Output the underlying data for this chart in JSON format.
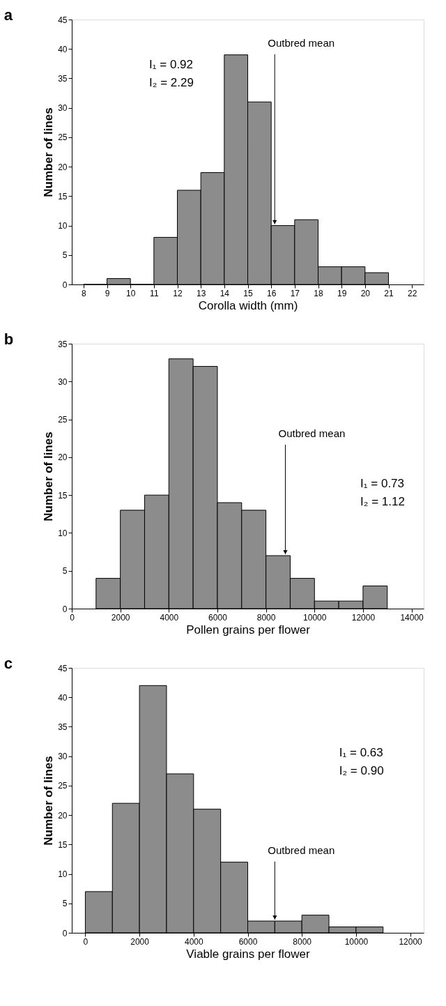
{
  "chart_data": [
    {
      "type": "histogram",
      "title": "a",
      "xlabel": "Corolla width (mm)",
      "ylabel": "Number of lines",
      "color": "#8c8c8c",
      "bins": [
        8,
        9,
        10,
        11,
        12,
        13,
        14,
        15,
        16,
        17,
        18,
        19,
        20,
        21
      ],
      "values": [
        0,
        1,
        0,
        8,
        16,
        19,
        39,
        31,
        10,
        11,
        3,
        3,
        2
      ],
      "xlim": [
        7.5,
        22.5
      ],
      "xticks": [
        8,
        9,
        10,
        11,
        12,
        13,
        14,
        15,
        16,
        17,
        18,
        19,
        20,
        21,
        22
      ],
      "ylim": [
        0,
        45
      ],
      "yticks": [
        0,
        5,
        10,
        15,
        20,
        25,
        30,
        35,
        40,
        45
      ],
      "grid": false,
      "annotations": [
        {
          "text": "Outbred mean",
          "x": 16.15,
          "y": 10
        },
        "I₁ = 0.92",
        "I₂ = 2.29"
      ]
    },
    {
      "type": "histogram",
      "title": "b",
      "xlabel": "Pollen grains per flower",
      "ylabel": "Number of lines",
      "color": "#8c8c8c",
      "bins": [
        1000,
        2000,
        3000,
        4000,
        5000,
        6000,
        7000,
        8000,
        9000,
        10000,
        11000,
        12000,
        13000
      ],
      "values": [
        4,
        13,
        15,
        33,
        32,
        14,
        13,
        7,
        4,
        1,
        1,
        3
      ],
      "xlim": [
        0,
        14500
      ],
      "xticks": [
        0,
        2000,
        4000,
        6000,
        8000,
        10000,
        12000,
        14000
      ],
      "ylim": [
        0,
        35
      ],
      "yticks": [
        0,
        5,
        10,
        15,
        20,
        25,
        30,
        35
      ],
      "grid": false,
      "annotations": [
        {
          "text": "Outbred mean",
          "x": 8800,
          "y": 7
        },
        "I₁ = 0.73",
        "I₂ = 1.12"
      ]
    },
    {
      "type": "histogram",
      "title": "c",
      "xlabel": "Viable grains per flower",
      "ylabel": "Number of lines",
      "color": "#8c8c8c",
      "bins": [
        0,
        1000,
        2000,
        3000,
        4000,
        5000,
        6000,
        7000,
        8000,
        9000,
        10000,
        11000
      ],
      "values": [
        7,
        22,
        42,
        27,
        21,
        12,
        2,
        2,
        3,
        1,
        1
      ],
      "xlim": [
        -500,
        12500
      ],
      "xticks": [
        0,
        2000,
        4000,
        6000,
        8000,
        10000,
        12000
      ],
      "ylim": [
        0,
        45
      ],
      "yticks": [
        0,
        5,
        10,
        15,
        20,
        25,
        30,
        35,
        40,
        45
      ],
      "grid": false,
      "annotations": [
        {
          "text": "Outbred mean",
          "x": 7000,
          "y": 2
        },
        "I₁ = 0.63",
        "I₂ = 0.90"
      ]
    }
  ]
}
